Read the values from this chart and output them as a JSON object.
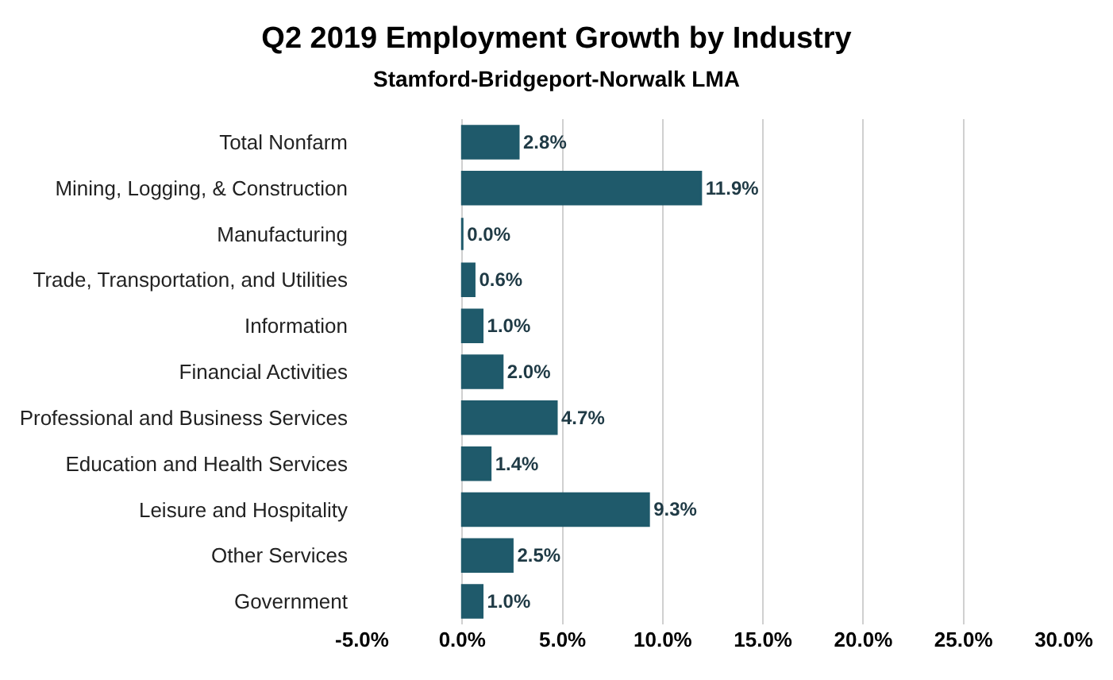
{
  "chart_data": {
    "type": "bar",
    "orientation": "horizontal",
    "title": "Q2 2019 Employment Growth by Industry",
    "subtitle": "Stamford-Bridgeport-Norwalk LMA",
    "categories": [
      "Total Nonfarm",
      "Mining, Logging, & Construction",
      "Manufacturing",
      "Trade, Transportation, and Utilities",
      "Information",
      "Financial Activities",
      "Professional and Business Services",
      "Education and Health Services",
      "Leisure and Hospitality",
      "Other Services",
      "Government"
    ],
    "values": [
      2.8,
      11.9,
      0.0,
      0.6,
      1.0,
      2.0,
      4.7,
      1.4,
      9.3,
      2.5,
      1.0
    ],
    "value_labels": [
      "2.8%",
      "11.9%",
      "0.0%",
      "0.6%",
      "1.0%",
      "2.0%",
      "4.7%",
      "1.4%",
      "9.3%",
      "2.5%",
      "1.0%"
    ],
    "color": "#1f5a6b",
    "xlim": [
      -5,
      30
    ],
    "xticks": [
      {
        "value": -5,
        "label": "-5.0%"
      },
      {
        "value": 0,
        "label": "0.0%"
      },
      {
        "value": 5,
        "label": "5.0%"
      },
      {
        "value": 10,
        "label": "10.0%"
      },
      {
        "value": 15,
        "label": "15.0%"
      },
      {
        "value": 20,
        "label": "20.0%"
      },
      {
        "value": 25,
        "label": "25.0%"
      },
      {
        "value": 30,
        "label": "30.0%"
      }
    ],
    "grid": "x"
  }
}
